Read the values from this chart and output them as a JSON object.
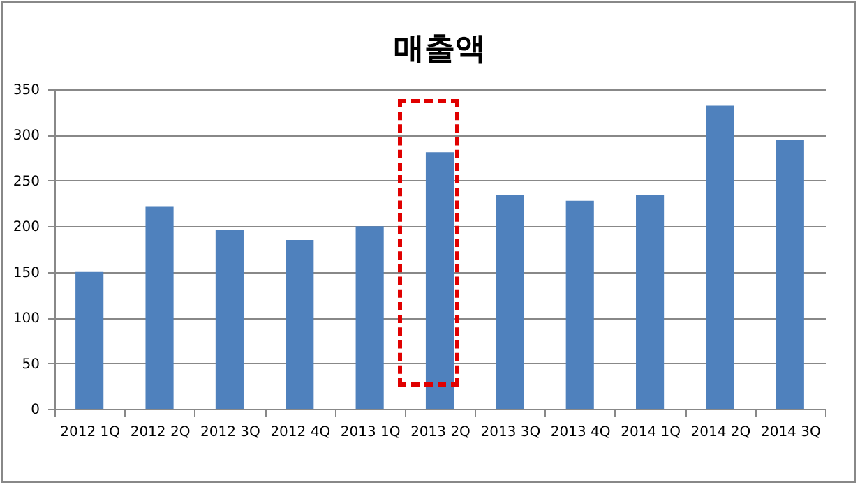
{
  "chart_data": {
    "type": "bar",
    "title": "매출액",
    "categories": [
      "2012 1Q",
      "2012 2Q",
      "2012 3Q",
      "2012 4Q",
      "2013 1Q",
      "2013 2Q",
      "2013 3Q",
      "2013 4Q",
      "2014 1Q",
      "2014 2Q",
      "2014 3Q"
    ],
    "values": [
      150,
      222,
      196,
      185,
      200,
      281,
      234,
      228,
      234,
      332,
      295
    ],
    "color": "#4f81bd",
    "ylim": [
      0,
      350
    ],
    "yticks": [
      0,
      50,
      100,
      150,
      200,
      250,
      300,
      350
    ],
    "grid": "y"
  }
}
